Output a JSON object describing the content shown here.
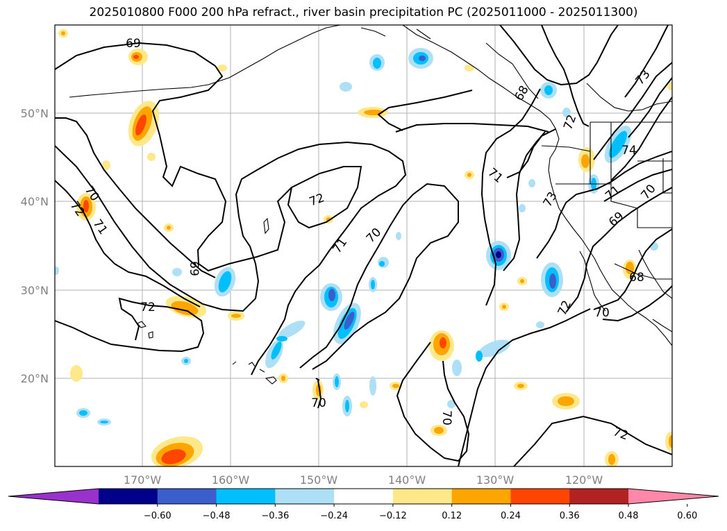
{
  "title": "2025010800 F000 200 hPa refract., river basin precipitation PC (2025011000 - 2025011300)",
  "map": {
    "lat_labels": [
      "50°N",
      "40°N",
      "30°N",
      "20°N"
    ],
    "lon_labels": [
      "170°W",
      "160°W",
      "150°W",
      "140°W",
      "130°W",
      "120°W"
    ],
    "contour_labels": [
      "69",
      "70",
      "72",
      "71",
      "72",
      "69",
      "70",
      "71",
      "70",
      "72",
      "70",
      "71",
      "73",
      "72",
      "73",
      "74",
      "71",
      "69",
      "68",
      "70",
      "72",
      "70",
      "72",
      "68"
    ]
  },
  "colorbar": {
    "colors": [
      "#9932CC",
      "#00008B",
      "#3A5FCD",
      "#00BFFF",
      "#ADDFF7",
      "#FFFFFF",
      "#FFE88A",
      "#FFA500",
      "#FF4500",
      "#B22222",
      "#FF88AA"
    ],
    "tick_labels": [
      "−0.60",
      "−0.48",
      "−0.36",
      "−0.24",
      "−0.12",
      "0.12",
      "0.24",
      "0.36",
      "0.48",
      "0.60"
    ]
  }
}
